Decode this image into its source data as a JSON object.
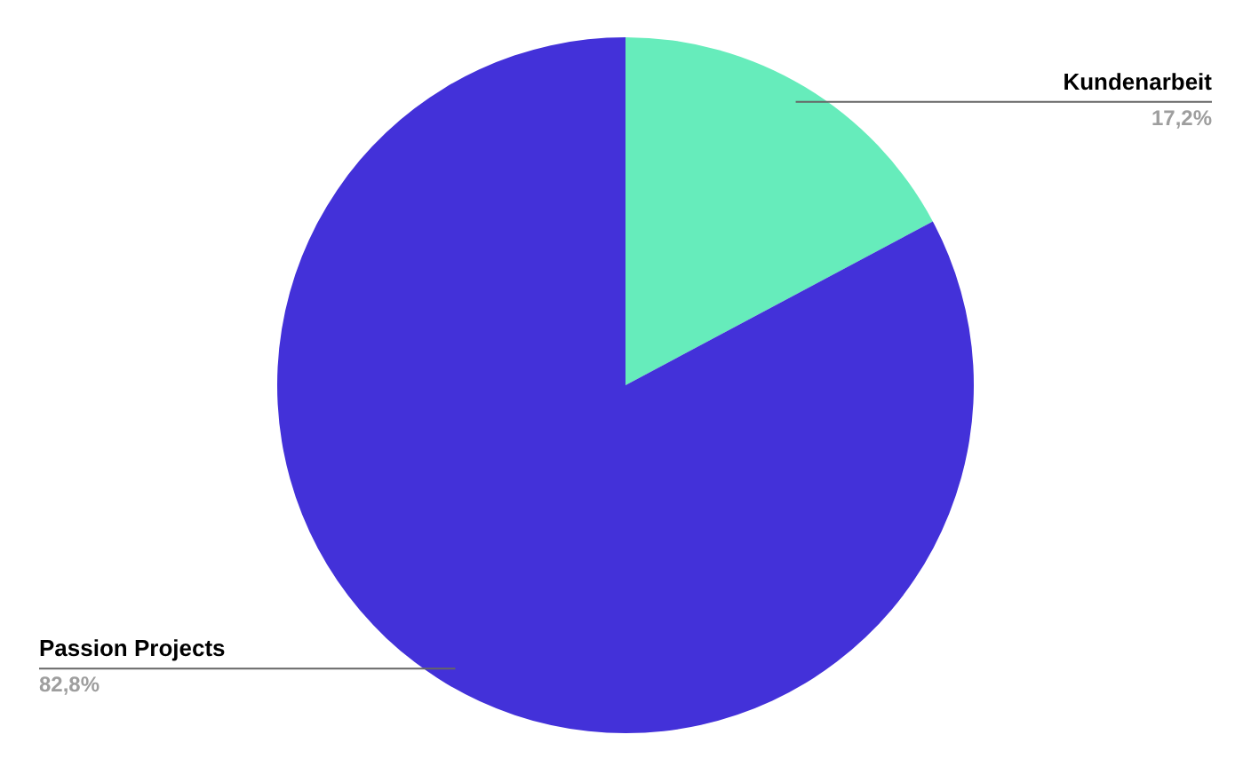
{
  "chart_data": {
    "type": "pie",
    "categories": [
      "Kundenarbeit",
      "Passion Projects"
    ],
    "values": [
      17.2,
      82.8
    ],
    "colors": [
      "#66ecbb",
      "#4331d9"
    ],
    "value_labels": [
      "17,2%",
      "82,8%"
    ]
  }
}
